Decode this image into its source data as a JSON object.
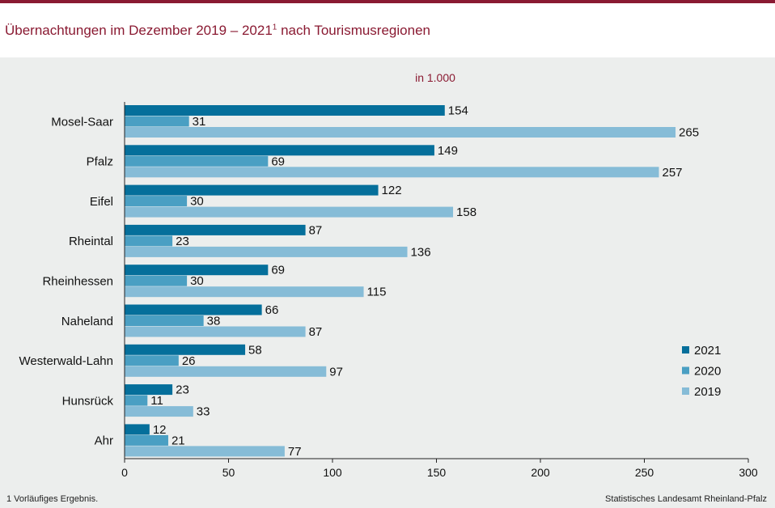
{
  "header": {
    "title": "Übernachtungen im Dezember 2019 – 2021",
    "title_sup": "1",
    "title_rest": " nach Tourismusregionen"
  },
  "footer": {
    "footnote": "1 Vorläufiges  Ergebnis.",
    "source": "Statistisches Landesamt  Rheinland-Pfalz"
  },
  "colors": {
    "2021": "#056f9b",
    "2020": "#4a9fc3",
    "2019": "#86bcd7",
    "accent": "#8a1a32"
  },
  "chart_data": {
    "type": "bar",
    "orientation": "horizontal",
    "unit_label": "in 1.000",
    "categories": [
      "Mosel-Saar",
      "Pfalz",
      "Eifel",
      "Rheintal",
      "Rheinhessen",
      "Naheland",
      "Westerwald-Lahn",
      "Hunsrück",
      "Ahr"
    ],
    "series": [
      {
        "name": "2021",
        "values": [
          154,
          149,
          122,
          87,
          69,
          66,
          58,
          23,
          12
        ]
      },
      {
        "name": "2020",
        "values": [
          31,
          69,
          30,
          23,
          30,
          38,
          26,
          11,
          21
        ]
      },
      {
        "name": "2019",
        "values": [
          265,
          257,
          158,
          136,
          115,
          87,
          97,
          33,
          77
        ]
      }
    ],
    "xlim": [
      0,
      300
    ],
    "xticks": [
      0,
      50,
      100,
      150,
      200,
      250,
      300
    ],
    "grid": false,
    "legend_position": "right"
  }
}
